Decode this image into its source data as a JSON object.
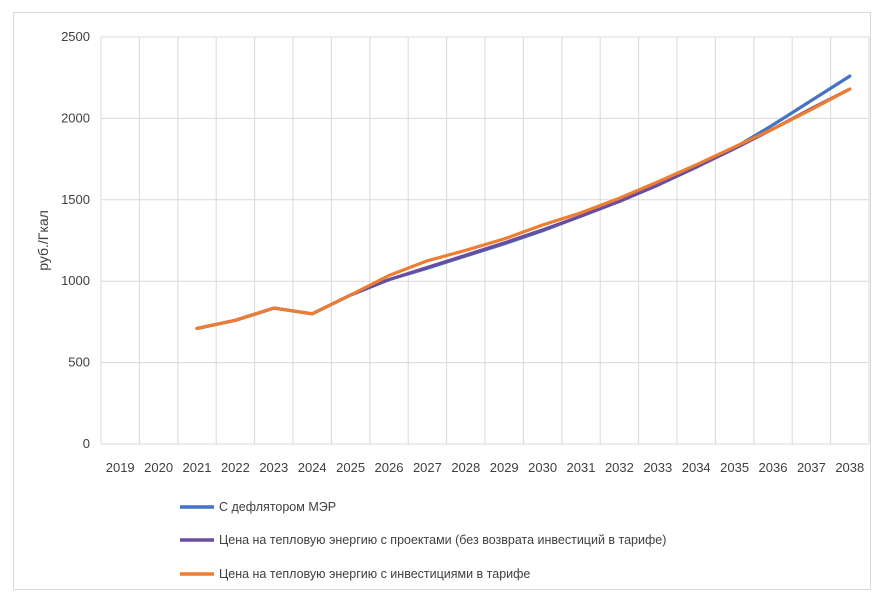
{
  "chart_data": {
    "type": "line",
    "title": "",
    "xlabel": "",
    "ylabel": "руб./Гкал",
    "ylim": [
      0,
      2500
    ],
    "yticks": [
      0,
      500,
      1000,
      1500,
      2000,
      2500
    ],
    "grid": true,
    "legend_position": "bottom",
    "categories": [
      "2019",
      "2020",
      "2021",
      "2022",
      "2023",
      "2024",
      "2025",
      "2026",
      "2027",
      "2028",
      "2029",
      "2030",
      "2031",
      "2032",
      "2033",
      "2034",
      "2035",
      "2036",
      "2037",
      "2038"
    ],
    "series": [
      {
        "name": "С дефлятором МЭР",
        "color": "#4472C4",
        "values": [
          null,
          null,
          710,
          760,
          835,
          800,
          915,
          1010,
          1080,
          1155,
          1230,
          1310,
          1400,
          1490,
          1590,
          1700,
          1820,
          1960,
          2110,
          2260
        ]
      },
      {
        "name": "Цена на тепловую энергию  с проектами (без возврата инвестиций  в тарифе)",
        "color": "#6A4CA0",
        "values": [
          null,
          null,
          710,
          760,
          835,
          800,
          915,
          1010,
          1085,
          1160,
          1235,
          1315,
          1400,
          1490,
          1590,
          1700,
          1815,
          1935,
          2060,
          2180
        ]
      },
      {
        "name": "Цена на тепловую энергию с инвестициями в тарифе",
        "color": "#ED7D31",
        "values": [
          null,
          null,
          710,
          760,
          835,
          800,
          915,
          1035,
          1125,
          1190,
          1260,
          1345,
          1420,
          1510,
          1610,
          1715,
          1825,
          1935,
          2055,
          2180
        ]
      }
    ]
  }
}
